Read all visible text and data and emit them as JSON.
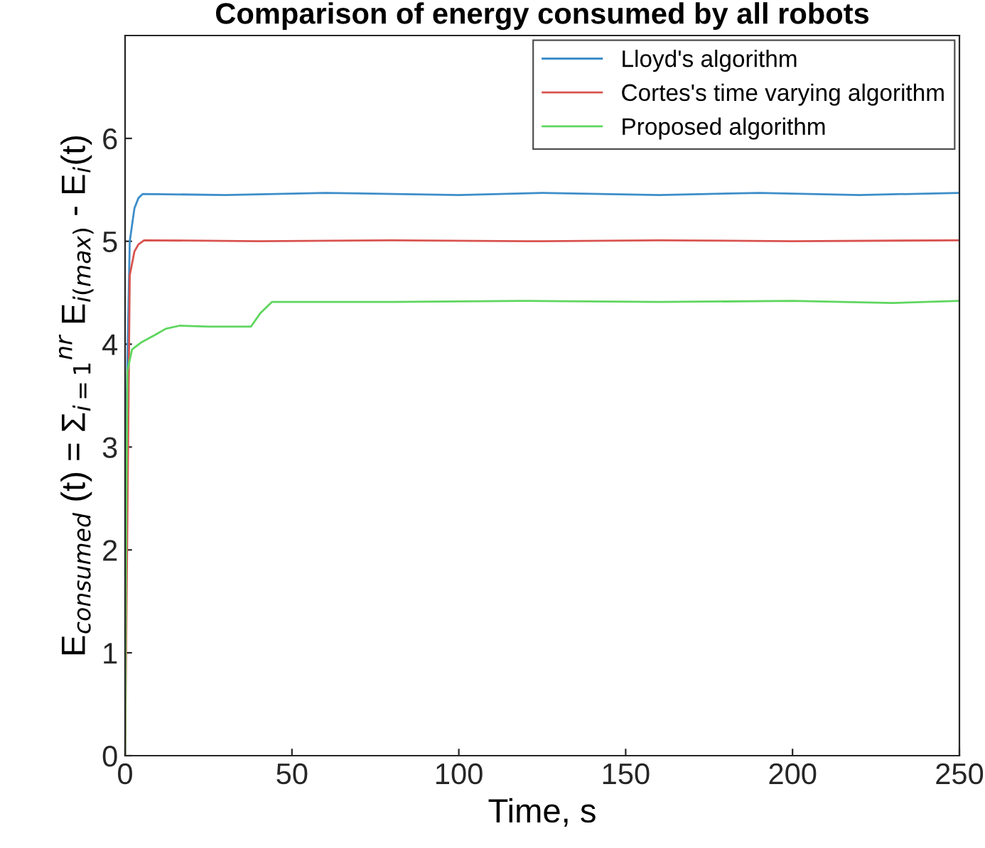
{
  "chart_data": {
    "type": "line",
    "title": "Comparison of energy consumed by all robots",
    "xlabel": "Time, s",
    "ylabel": "E$_{consumed}$ (t) = Σ$_{i=1}$$^{nr}$ E$_{i(max)}$ - E$_{i}$(t)",
    "xlim": [
      0,
      250
    ],
    "xticks": [
      0,
      50,
      100,
      150,
      200,
      250
    ],
    "ylim": [
      0,
      7
    ],
    "yticks": [
      0,
      1,
      2,
      3,
      4,
      5,
      6
    ],
    "grid": false,
    "legend": "top right",
    "line_style": "solid",
    "series": [
      {
        "name": "Lloyd's algorithm",
        "color": "#3d8ec9",
        "x": [
          0,
          0.5,
          1.4,
          2.8,
          4,
          5.3,
          30,
          60,
          100,
          125,
          160,
          190,
          220,
          250
        ],
        "values": [
          0,
          3.5,
          5.0,
          5.32,
          5.42,
          5.46,
          5.45,
          5.47,
          5.45,
          5.47,
          5.45,
          5.47,
          5.45,
          5.47
        ]
      },
      {
        "name": "Cortes's time varying algorithm",
        "color": "#d9534f",
        "x": [
          0,
          1.4,
          2.8,
          4,
          5.7,
          40,
          80,
          120,
          160,
          200,
          250
        ],
        "values": [
          0,
          4.67,
          4.9,
          4.97,
          5.01,
          5.0,
          5.01,
          5.0,
          5.01,
          5.0,
          5.01
        ]
      },
      {
        "name": "Proposed algorithm",
        "color": "#5fd65f",
        "x": [
          0,
          0.3,
          0.7,
          2.1,
          5,
          9,
          12.2,
          16.4,
          25,
          37.7,
          40.5,
          44,
          80,
          120,
          160,
          200,
          230,
          250
        ],
        "values": [
          0,
          2.0,
          3.74,
          3.95,
          4.02,
          4.09,
          4.15,
          4.18,
          4.17,
          4.17,
          4.3,
          4.41,
          4.41,
          4.42,
          4.41,
          4.42,
          4.4,
          4.42
        ]
      }
    ]
  }
}
